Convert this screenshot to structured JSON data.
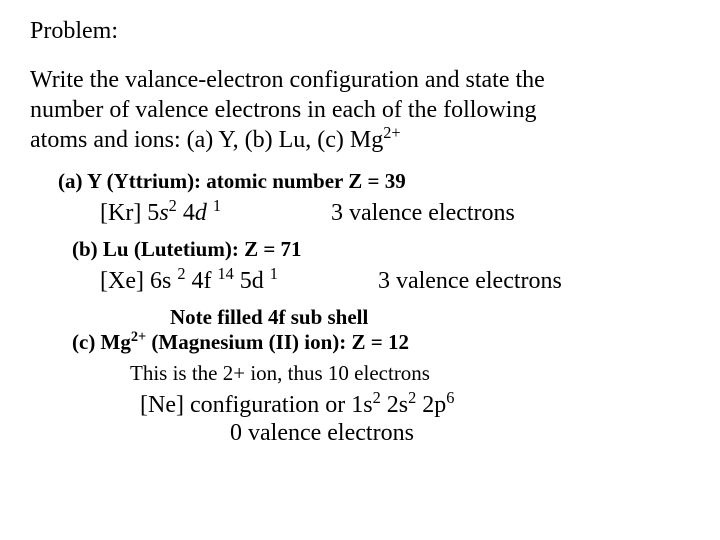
{
  "title": "Problem:",
  "prompt_l1": "Write the valance-electron configuration and state the",
  "prompt_l2": "number of valence electrons in each of the following",
  "prompt_l3_a": "atoms and ions:  (a)  Y, (b)  Lu, (c)  Mg",
  "prompt_l3_sup": "2+",
  "part_a": {
    "heading": "(a)  Y (Yttrium):  atomic number Z = 39",
    "config_prefix": "[Kr] 5",
    "config_s": "s",
    "config_s_sup": "2",
    "config_mid": " 4",
    "config_d": "d",
    "config_sp": " ",
    "config_d_sup": "1",
    "valence": "3 valence electrons"
  },
  "part_b": {
    "heading": "(b) Lu (Lutetium):  Z = 71",
    "config_prefix": "[Xe] 6s ",
    "config_sup1": "2",
    "config_mid1": " 4f ",
    "config_sup2": "14",
    "config_mid2": " 5d ",
    "config_sup3": "1",
    "valence": "3 valence electrons",
    "note": "Note filled 4f sub shell"
  },
  "part_c": {
    "heading_a": "(c) Mg",
    "heading_sup": "2+",
    "heading_b": " (Magnesium (II) ion):  Z = 12",
    "sub": "This is the 2+ ion, thus 10 electrons",
    "final_a": "[Ne] configuration or 1s",
    "final_sup1": "2",
    "final_b": " 2s",
    "final_sup2": "2",
    "final_c": " 2p",
    "final_sup3": "6",
    "final_valence": "0 valence electrons"
  }
}
